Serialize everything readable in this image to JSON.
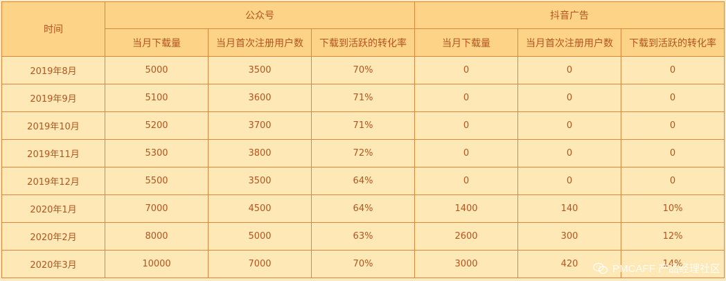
{
  "table": {
    "time_header": "时间",
    "groups": [
      "公众号",
      "抖音广告"
    ],
    "sub_headers": [
      "当月下载量",
      "当月首次注册用户数",
      "下载到活跃的转化率",
      "当月下载量",
      "当月首次注册用户数",
      "下载到活跃的转化率"
    ],
    "rows": [
      [
        "2019年8月",
        "5000",
        "3500",
        "70%",
        "0",
        "0",
        "0"
      ],
      [
        "2019年9月",
        "5100",
        "3600",
        "71%",
        "0",
        "0",
        "0"
      ],
      [
        "2019年10月",
        "5200",
        "3700",
        "71%",
        "0",
        "0",
        "0"
      ],
      [
        "2019年11月",
        "5300",
        "3800",
        "72%",
        "0",
        "0",
        "0"
      ],
      [
        "2019年12月",
        "5500",
        "3500",
        "64%",
        "0",
        "0",
        "0"
      ],
      [
        "2020年1月",
        "7000",
        "4500",
        "64%",
        "1400",
        "140",
        "10%"
      ],
      [
        "2020年2月",
        "8000",
        "5000",
        "63%",
        "2600",
        "300",
        "12%"
      ],
      [
        "2020年3月",
        "10000",
        "7000",
        "70%",
        "3000",
        "420",
        "14%"
      ]
    ]
  },
  "watermark": {
    "text": "PMCAFF 产品经理社区",
    "icon": "wechat-icon"
  }
}
